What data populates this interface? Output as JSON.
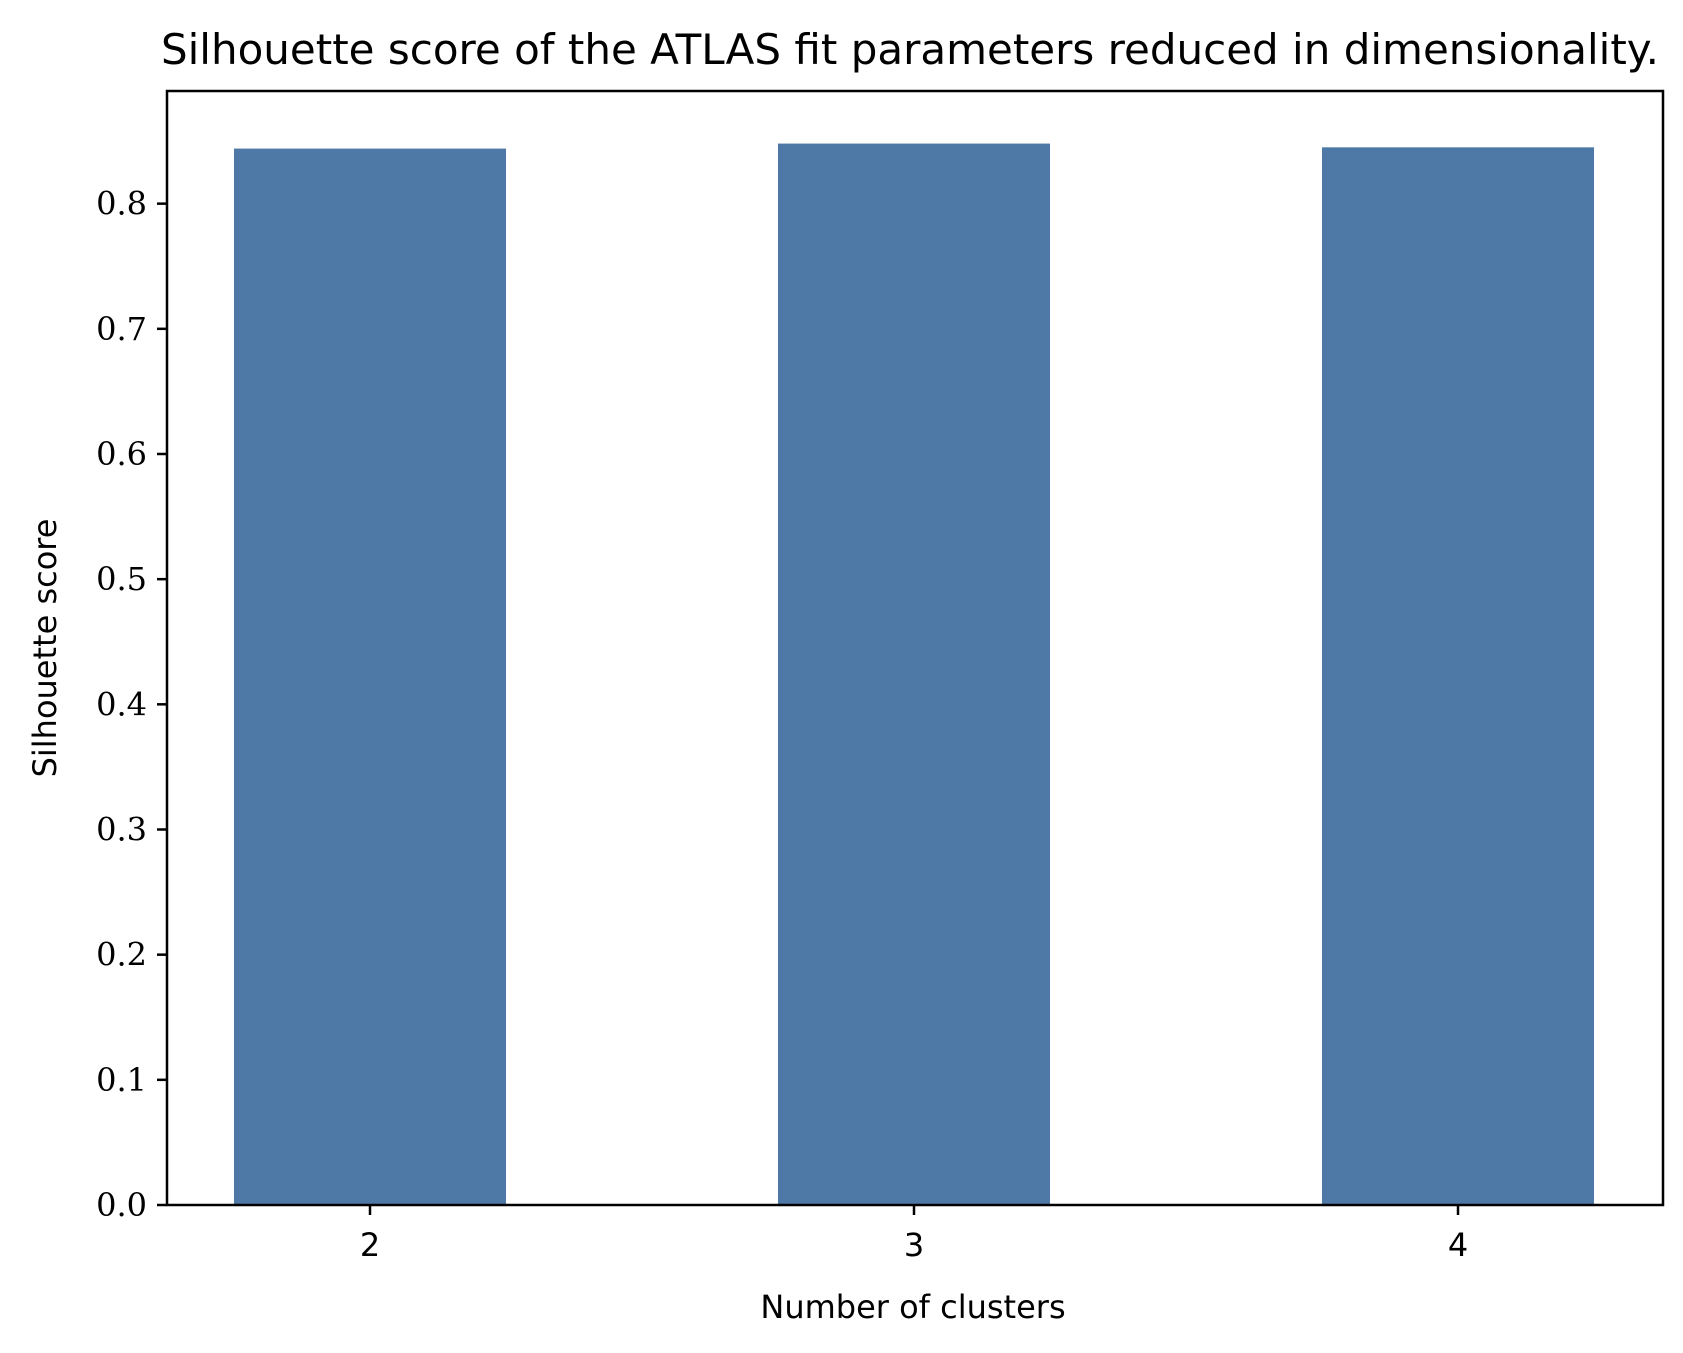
{
  "chart_data": {
    "type": "bar",
    "title": "Silhouette score of the ATLAS fit parameters reduced in dimensionality.",
    "xlabel": "Number of clusters",
    "ylabel": "Silhouette score",
    "categories": [
      "2",
      "3",
      "4"
    ],
    "values": [
      0.844,
      0.848,
      0.845
    ],
    "ylim": [
      0,
      0.89
    ],
    "yticks": [
      "0.0",
      "0.1",
      "0.2",
      "0.3",
      "0.4",
      "0.5",
      "0.6",
      "0.7",
      "0.8"
    ],
    "bar_color": "#4e79a7",
    "grid": false,
    "legend": "none"
  }
}
